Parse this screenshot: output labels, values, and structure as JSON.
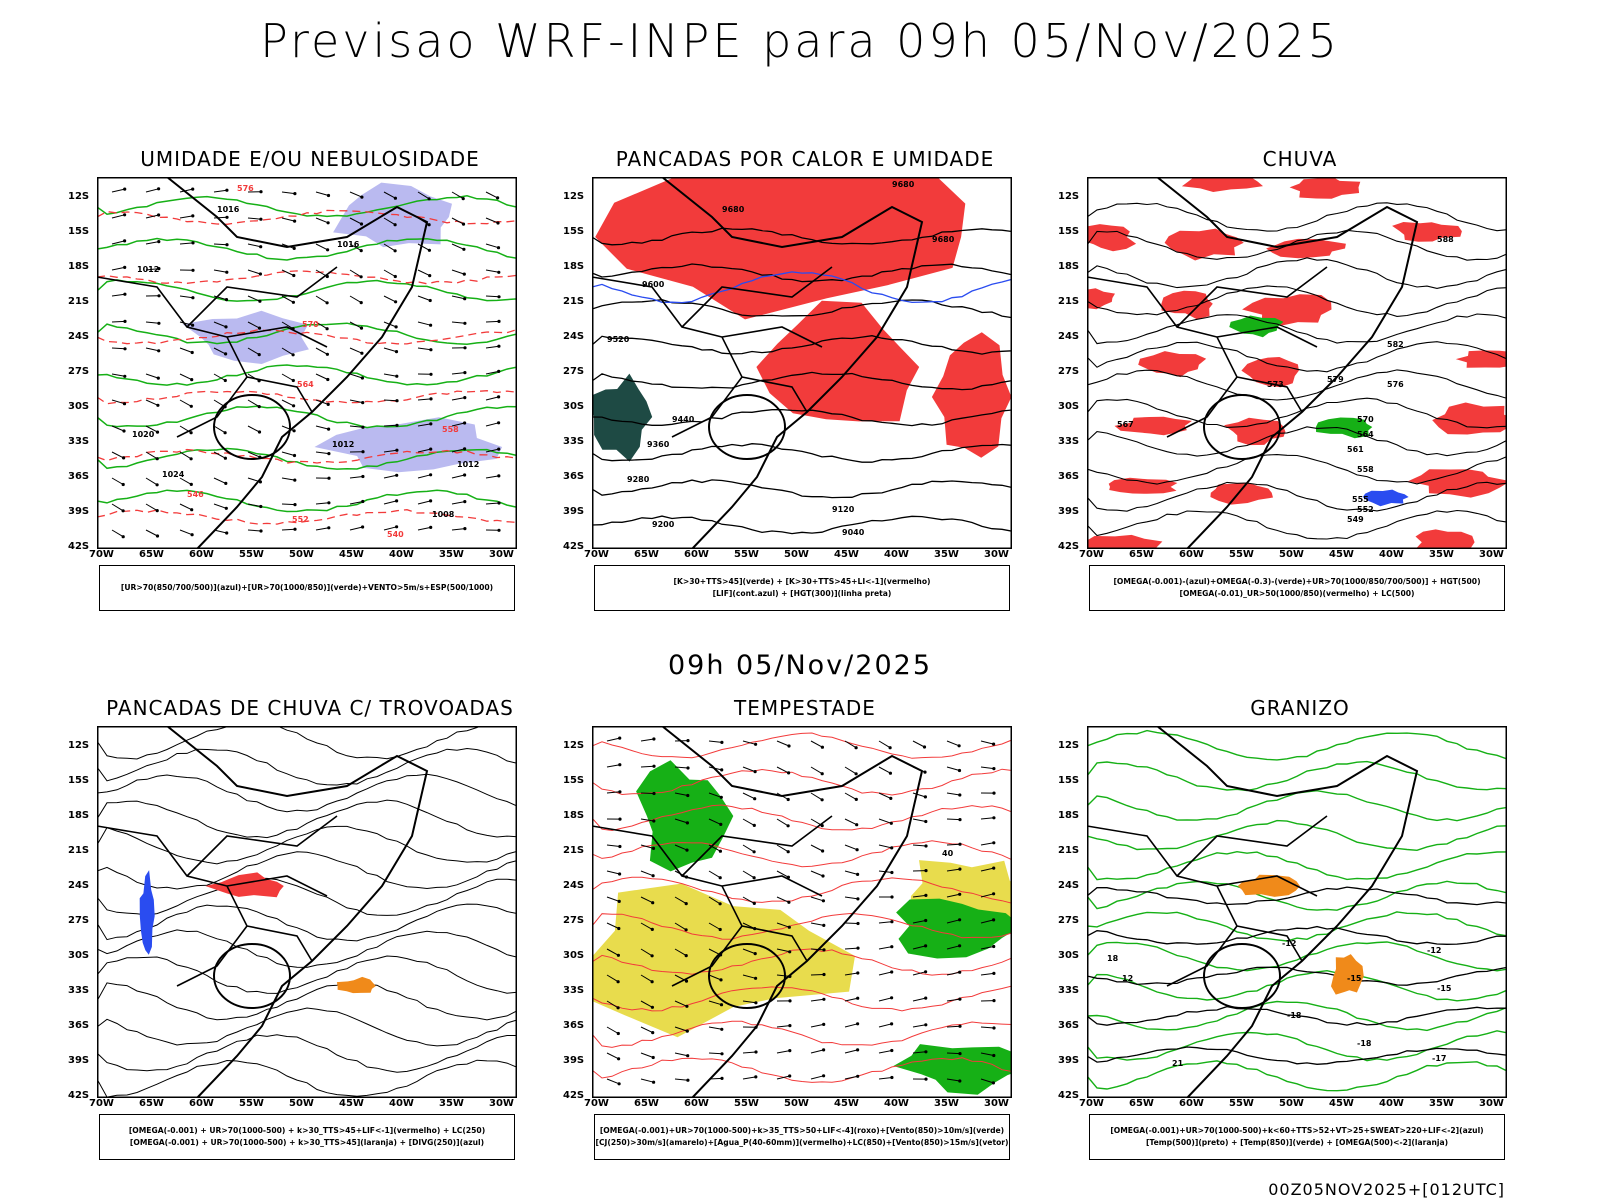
{
  "header": {
    "title": "Previsao WRF-INPE  para 09h 05/Nov/2025",
    "mid_title": "09h 05/Nov/2025",
    "footer": "00Z05NOV2025+[012UTC]"
  },
  "axes": {
    "latitudes": [
      "12S",
      "15S",
      "18S",
      "21S",
      "24S",
      "27S",
      "30S",
      "33S",
      "36S",
      "39S",
      "42S"
    ],
    "longitudes": [
      "70W",
      "65W",
      "60W",
      "55W",
      "50W",
      "45W",
      "40W",
      "35W",
      "30W"
    ]
  },
  "panels": [
    {
      "title": "UMIDADE E/OU NEBULOSIDADE",
      "legend": [
        "[UR>70(850/700/500)](azul)+[UR>70(1000/850)](verde)+VENTO>5m/s+ESP(500/1000)"
      ],
      "labels": [
        "1016",
        "1016",
        "1012",
        "1020",
        "1024",
        "1012",
        "1012",
        "1008",
        "576",
        "570",
        "564",
        "558",
        "552",
        "546",
        "540"
      ]
    },
    {
      "title": "PANCADAS POR CALOR E UMIDADE",
      "legend": [
        "[K>30+TTS>45](verde) + [K>30+TTS>45+LI<-1](vermelho)",
        "[LIF](cont.azul) + [HGT(300)](linha preta)"
      ],
      "labels": [
        "9680",
        "9680",
        "9680",
        "9600",
        "9520",
        "9440",
        "9360",
        "9280",
        "9200",
        "9120",
        "9040"
      ]
    },
    {
      "title": "CHUVA",
      "legend": [
        "[OMEGA(-0.001)-(azul)+OMEGA(-0.3)-(verde)+UR>70(1000/850/700/500)] + HGT(500)",
        "[OMEGA(-0.01)_UR>50(1000/850)(vermelho) + LC(500)"
      ],
      "labels": [
        "588",
        "582",
        "579",
        "576",
        "573",
        "570",
        "567",
        "564",
        "561",
        "558",
        "555",
        "552",
        "549"
      ]
    },
    {
      "title": "PANCADAS DE CHUVA C/ TROVOADAS",
      "legend": [
        "[OMEGA(-0.001) + UR>70(1000-500) + k>30_TTS>45+LIF<-1](vermelho) + LC(250)",
        "[OMEGA(-0.001) + UR>70(1000-500) + k>30_TTS>45](laranja) + [DIVG(250)](azul)"
      ],
      "labels": []
    },
    {
      "title": "TEMPESTADE",
      "legend": [
        "[OMEGA(-0.001)+UR>70(1000-500)+k>35_TTS>50+LIF<-4](roxo)+[Vento(850)>10m/s](verde)",
        "[CJ(250)>30m/s](amarelo)+[Agua_P(40-60mm)](vermelho)+LC(850)+[Vento(850)>15m/s](vetor)"
      ],
      "labels": [
        "40"
      ]
    },
    {
      "title": "GRANIZO",
      "legend": [
        "[OMEGA(-0.001)+UR>70(1000-500)+k<60+TTS>52+VT>25+SWEAT>220+LIF<-2](azul)",
        "[Temp(500)](preto) + [Temp(850)](verde) + [OMEGA(500)<-2](laranja)"
      ],
      "labels": [
        "-12",
        "-12",
        "-15",
        "-15",
        "-18",
        "-18",
        "-17",
        "21",
        "18",
        "12"
      ]
    }
  ],
  "colors": {
    "red": "#f23b3b",
    "green": "#16b016",
    "blue": "#2a4cf0",
    "lavender": "#b3b3ee",
    "dark_teal": "#1e4a44",
    "yellow": "#e6d83a",
    "orange": "#f08a1a",
    "black": "#000000"
  }
}
